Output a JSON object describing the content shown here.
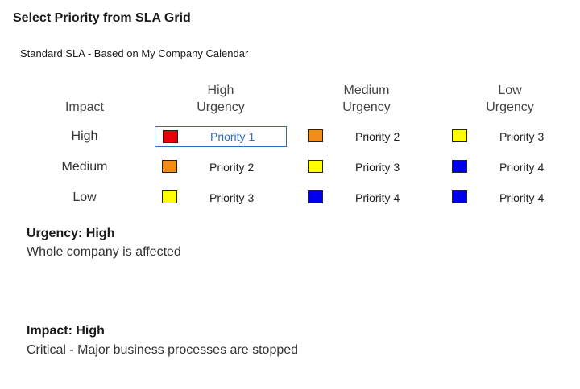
{
  "dialog": {
    "title": "Select Priority from SLA Grid",
    "sla_name": "Standard SLA - Based on My Company Calendar"
  },
  "grid": {
    "impact_header": "Impact",
    "urgency_columns": [
      {
        "line1": "High",
        "line2": "Urgency"
      },
      {
        "line1": "Medium",
        "line2": "Urgency"
      },
      {
        "line1": "Low",
        "line2": "Urgency"
      }
    ],
    "rows": [
      {
        "impact": "High",
        "cells": [
          {
            "label": "Priority 1",
            "color": "#e8000b",
            "selected": true
          },
          {
            "label": "Priority 2",
            "color": "#f28c1c",
            "selected": false
          },
          {
            "label": "Priority 3",
            "color": "#ffff00",
            "selected": false
          }
        ]
      },
      {
        "impact": "Medium",
        "cells": [
          {
            "label": "Priority 2",
            "color": "#f28c1c",
            "selected": false
          },
          {
            "label": "Priority 3",
            "color": "#ffff00",
            "selected": false
          },
          {
            "label": "Priority 4",
            "color": "#0000ee",
            "selected": false
          }
        ]
      },
      {
        "impact": "Low",
        "cells": [
          {
            "label": "Priority 3",
            "color": "#ffff00",
            "selected": false
          },
          {
            "label": "Priority 4",
            "color": "#0000ee",
            "selected": false
          },
          {
            "label": "Priority 4",
            "color": "#0000ee",
            "selected": false
          }
        ]
      }
    ]
  },
  "urgency_info": {
    "title": "Urgency: High",
    "description": "Whole company is affected"
  },
  "impact_info": {
    "title": "Impact: High",
    "description": "Critical - Major business processes are stopped"
  }
}
